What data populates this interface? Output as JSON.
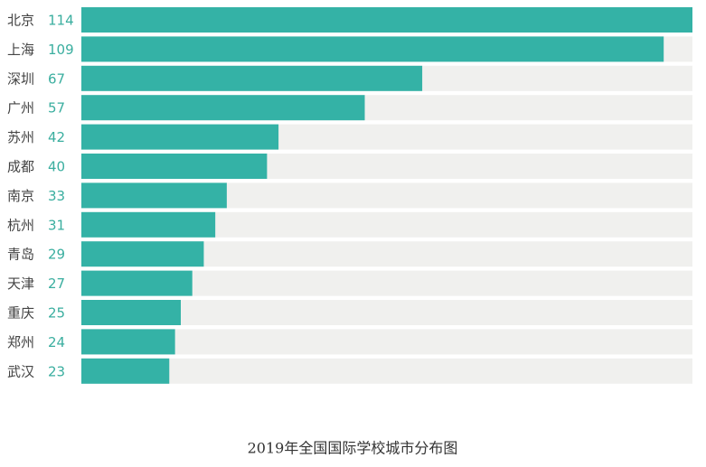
{
  "chart_data": {
    "type": "bar",
    "orientation": "horizontal",
    "title": "2019年全国国际学校城市分布图",
    "categories": [
      "北京",
      "上海",
      "深圳",
      "广州",
      "苏州",
      "成都",
      "南京",
      "杭州",
      "青岛",
      "天津",
      "重庆",
      "郑州",
      "武汉"
    ],
    "values": [
      114,
      109,
      67,
      57,
      42,
      40,
      33,
      31,
      29,
      27,
      25,
      24,
      23
    ],
    "color": "#34b2a6",
    "label_color": "#3aae9f",
    "track_color": "#f0f0ee",
    "xlim": [
      0,
      114
    ]
  }
}
